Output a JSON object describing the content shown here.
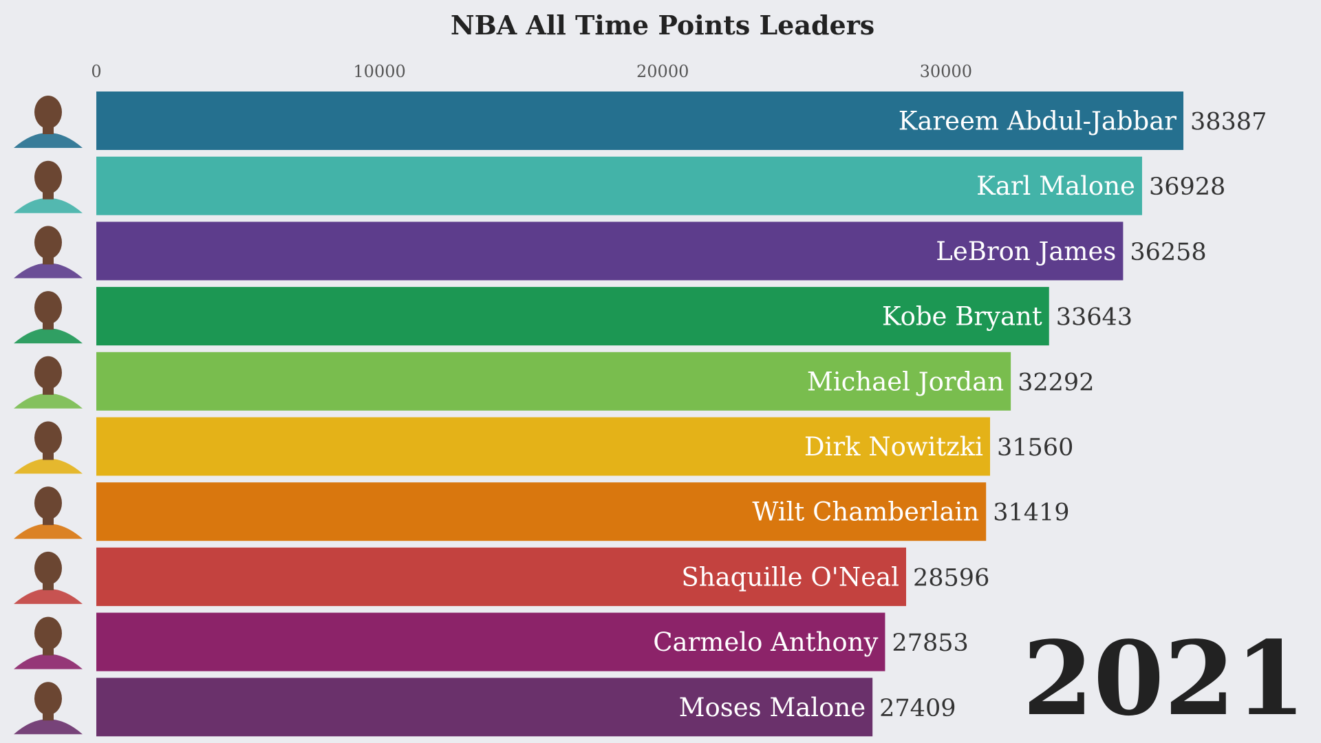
{
  "chart_data": {
    "type": "bar",
    "orientation": "horizontal",
    "title": "NBA All Time Points Leaders",
    "xlabel": "",
    "ylabel": "",
    "xlim": [
      0,
      38387
    ],
    "xticks": [
      0,
      10000,
      20000,
      30000
    ],
    "xtick_labels": [
      "0",
      "10000",
      "20000",
      "30000"
    ],
    "tick_position": "top",
    "grid": false,
    "legend": "none",
    "year": "2021",
    "categories": [
      "Kareem Abdul-Jabbar",
      "Karl Malone",
      "LeBron James",
      "Kobe Bryant",
      "Michael Jordan",
      "Dirk Nowitzki",
      "Wilt Chamberlain",
      "Shaquille O'Neal",
      "Carmelo Anthony",
      "Moses Malone"
    ],
    "values": [
      38387,
      36928,
      36258,
      33643,
      32292,
      31560,
      31419,
      28596,
      27853,
      27409
    ],
    "value_labels": [
      "38387",
      "36928",
      "36258",
      "33643",
      "32292",
      "31560",
      "31419",
      "28596",
      "27853",
      "27409"
    ],
    "colors": [
      "#25708f",
      "#43b3a8",
      "#5d3d8c",
      "#1c9753",
      "#79bd4e",
      "#e4b218",
      "#d9770e",
      "#c3423f",
      "#8c2369",
      "#6a316b"
    ],
    "icons": [
      "player-photo-icon",
      "player-photo-icon",
      "player-photo-icon",
      "player-photo-icon",
      "player-photo-icon",
      "player-photo-icon",
      "player-photo-icon",
      "player-photo-icon",
      "player-photo-icon",
      "player-photo-icon"
    ]
  }
}
